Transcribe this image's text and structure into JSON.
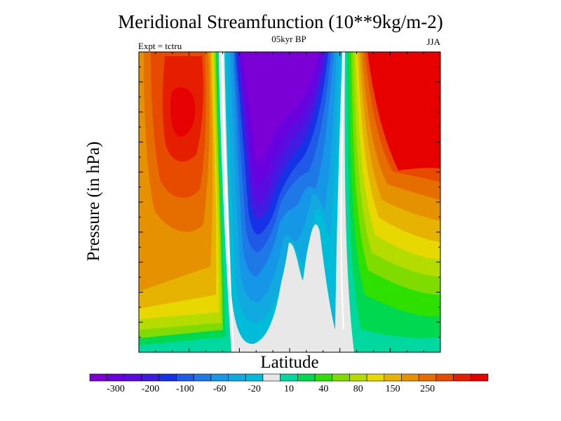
{
  "chart_data": {
    "type": "contour",
    "title": "Meridional Streamfunction (10**9kg/m-2)",
    "subtitle_left": "Expt = tctru",
    "subtitle_center": "05kyr BP",
    "subtitle_right": "JJA",
    "xlabel": "Latitude",
    "ylabel": "Pressure (in hPa)",
    "colorbar": {
      "levels": [
        "-300",
        "-200",
        "-100",
        "-60",
        "-20",
        "10",
        "40",
        "80",
        "150",
        "250"
      ],
      "colors": [
        "#7b00d6",
        "#6a00dd",
        "#5a0ce0",
        "#3f1ce0",
        "#1632e6",
        "#1e5ae6",
        "#1e78e6",
        "#1596e6",
        "#10aae0",
        "#00bcd8",
        "#e6e6e6",
        "#00d8a0",
        "#00d850",
        "#2ee000",
        "#80dc00",
        "#b4dc00",
        "#e6d800",
        "#e6b400",
        "#e69100",
        "#e66e00",
        "#e64b00",
        "#e61e00",
        "#e60000"
      ]
    },
    "fields": [
      {
        "name": "southern-hemisphere-positive-cell",
        "sign": "positive",
        "max_level": "250"
      },
      {
        "name": "tropical-negative-cell",
        "sign": "negative",
        "min_level": "-300"
      },
      {
        "name": "northern-hemisphere-positive-cell",
        "sign": "positive",
        "max_level": "250"
      }
    ]
  }
}
